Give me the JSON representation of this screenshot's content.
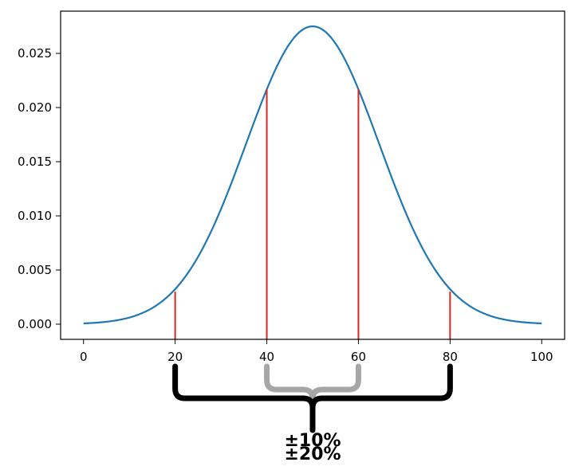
{
  "chart_data": {
    "type": "line",
    "title": "",
    "xlabel": "",
    "ylabel": "",
    "xlim": [
      -5,
      105
    ],
    "ylim": [
      -0.0014,
      0.0289
    ],
    "grid": false,
    "series": [
      {
        "color": "#1f77b4",
        "curve": "normal density",
        "mean": 50,
        "sd": 14.5,
        "x_range": [
          0,
          100
        ],
        "peak": 0.0275
      }
    ],
    "x_ticks": [
      0,
      20,
      40,
      60,
      80,
      100
    ],
    "x_tick_labels": [
      "0",
      "20",
      "40",
      "60",
      "80",
      "100"
    ],
    "y_ticks": [
      0.0,
      0.005,
      0.01,
      0.015,
      0.02,
      0.025
    ],
    "y_tick_labels": [
      "0.000",
      "0.005",
      "0.010",
      "0.015",
      "0.020",
      "0.025"
    ],
    "vertical_lines": [
      {
        "x": 20,
        "y": 0.003
      },
      {
        "x": 40,
        "y": 0.0217
      },
      {
        "x": 60,
        "y": 0.0217
      },
      {
        "x": 80,
        "y": 0.003
      }
    ],
    "vline_color": "#d62728",
    "annotations": [
      {
        "range": [
          40,
          60
        ],
        "label": "±10%",
        "color": "#a6a6a6"
      },
      {
        "range": [
          20,
          80
        ],
        "label": "±20%",
        "color": "#000000"
      }
    ]
  }
}
